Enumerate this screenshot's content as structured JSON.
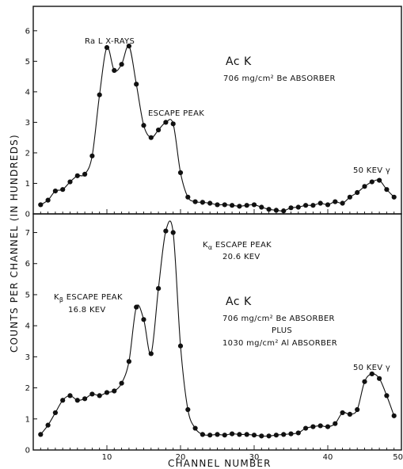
{
  "chart_data": {
    "type": "scatter",
    "xlabel": "CHANNEL NUMBER",
    "ylabel": "COUNTS PER CHANNEL (IN HUNDREDS)",
    "x_ticks": [
      "10",
      "20",
      "30",
      "40",
      "50"
    ],
    "xlim": [
      0,
      50
    ],
    "panels": [
      {
        "id": "top",
        "ylim": [
          0,
          6.8
        ],
        "y_ticks": [
          "0",
          "1",
          "2",
          "3",
          "4",
          "5",
          "6"
        ],
        "annotations": {
          "ra_l_xrays": "Ra L  X-RAYS",
          "source": "Ac K",
          "absorber": "706 mg/cm² Be ABSORBER",
          "escape_peak": "ESCAPE PEAK",
          "gamma_50kev": "50 KEV γ"
        },
        "series": [
          {
            "x": [
              1,
              2,
              3,
              4,
              5,
              6,
              7,
              8,
              9,
              10,
              11,
              12,
              13,
              14,
              15,
              16,
              17,
              18,
              19,
              20,
              21,
              22,
              23,
              24,
              25,
              26,
              27,
              28,
              29,
              30,
              31,
              32,
              33,
              34,
              35,
              36,
              37,
              38,
              39,
              40,
              41,
              42,
              43,
              44,
              45,
              46,
              47,
              48,
              49
            ],
            "y": [
              0.3,
              0.45,
              0.75,
              0.8,
              1.05,
              1.25,
              1.3,
              1.9,
              3.9,
              5.45,
              4.7,
              4.9,
              5.5,
              4.25,
              2.9,
              2.5,
              2.75,
              3.0,
              2.95,
              1.35,
              0.55,
              0.4,
              0.38,
              0.35,
              0.3,
              0.3,
              0.28,
              0.25,
              0.28,
              0.3,
              0.22,
              0.15,
              0.12,
              0.1,
              0.2,
              0.22,
              0.28,
              0.28,
              0.35,
              0.3,
              0.4,
              0.35,
              0.55,
              0.7,
              0.9,
              1.05,
              1.1,
              0.8,
              0.55
            ]
          }
        ]
      },
      {
        "id": "bottom",
        "ylim": [
          0,
          7.6
        ],
        "y_ticks": [
          "0",
          "1",
          "2",
          "3",
          "4",
          "5",
          "6",
          "7"
        ],
        "annotations": {
          "ka_escape": "K",
          "ka_sub": "α",
          "ka_escape_suffix": " ESCAPE PEAK",
          "ka_energy": "20.6 KEV",
          "kb_escape": "K",
          "kb_sub": "β",
          "kb_escape_suffix": "  ESCAPE PEAK",
          "kb_energy": "16.8 KEV",
          "source": "Ac K",
          "absorber": "706 mg/cm² Be ABSORBER",
          "plus": "PLUS",
          "absorber2": "1030 mg/cm² Al ABSORBER",
          "gamma_50kev": "50 KEV γ"
        },
        "series": [
          {
            "x": [
              1,
              2,
              3,
              4,
              5,
              6,
              7,
              8,
              9,
              10,
              11,
              12,
              13,
              14,
              15,
              16,
              17,
              18,
              19,
              20,
              21,
              22,
              23,
              24,
              25,
              26,
              27,
              28,
              29,
              30,
              31,
              32,
              33,
              34,
              35,
              36,
              37,
              38,
              39,
              40,
              41,
              42,
              43,
              44,
              45,
              46,
              47,
              48,
              49
            ],
            "y": [
              0.5,
              0.8,
              1.2,
              1.6,
              1.75,
              1.6,
              1.65,
              1.8,
              1.75,
              1.85,
              1.9,
              2.15,
              2.85,
              4.6,
              4.2,
              3.1,
              5.2,
              7.05,
              7.0,
              3.35,
              1.3,
              0.7,
              0.5,
              0.48,
              0.5,
              0.48,
              0.52,
              0.5,
              0.5,
              0.48,
              0.45,
              0.45,
              0.48,
              0.5,
              0.52,
              0.55,
              0.7,
              0.75,
              0.78,
              0.75,
              0.85,
              1.2,
              1.15,
              1.3,
              2.2,
              2.45,
              2.3,
              1.75,
              1.1
            ]
          }
        ]
      }
    ]
  }
}
